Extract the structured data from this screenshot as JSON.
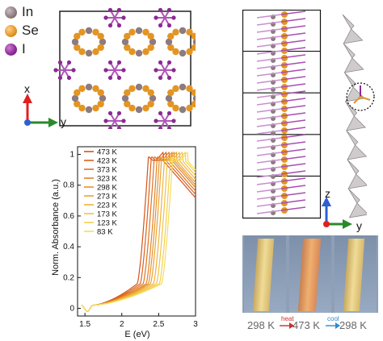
{
  "atom_legend": [
    {
      "label": "In",
      "color": "#8c7b7f"
    },
    {
      "label": "Se",
      "color": "#e39524"
    },
    {
      "label": "I",
      "color": "#8a2a93"
    }
  ],
  "axes_xy": {
    "x_label": "x",
    "y_label": "y",
    "x_color": "#e02020",
    "y_color": "#2a8a2a",
    "origin_color": "#2f5fd0"
  },
  "axes_zy": {
    "z_label": "z",
    "y_label": "y",
    "z_color": "#2f5fd0",
    "y_color": "#2a8a2a",
    "origin_color": "#e02020"
  },
  "chart_data": {
    "type": "line",
    "xlabel": "E (eV)",
    "ylabel": "Norm. Absorbance (a.u.)",
    "xlim": [
      1.4,
      3.0
    ],
    "ylim": [
      -0.05,
      1.05
    ],
    "xticks": [
      "1.5",
      "2",
      "2.5",
      "3"
    ],
    "yticks": [
      "0",
      "0.2",
      "0.4",
      "0.6",
      "0.8",
      "1"
    ],
    "legend_position": "upper-left",
    "series": [
      {
        "name": "473 K",
        "color": "#d4521a",
        "edge": 2.36
      },
      {
        "name": "423 K",
        "color": "#d9621d",
        "edge": 2.4
      },
      {
        "name": "373 K",
        "color": "#de7222",
        "edge": 2.44
      },
      {
        "name": "323 K",
        "color": "#e28226",
        "edge": 2.48
      },
      {
        "name": "298 K",
        "color": "#e6922b",
        "edge": 2.51
      },
      {
        "name": "273 K",
        "color": "#eaa232",
        "edge": 2.54
      },
      {
        "name": "223 K",
        "color": "#eeb23a",
        "edge": 2.58
      },
      {
        "name": "173 K",
        "color": "#f1c244",
        "edge": 2.62
      },
      {
        "name": "123 K",
        "color": "#f4d04e",
        "edge": 2.66
      },
      {
        "name": "83 K",
        "color": "#f6dc5a",
        "edge": 2.69
      }
    ]
  },
  "photo_strip": {
    "labels": [
      "298 K",
      "473 K",
      "298 K"
    ],
    "heat_label": "heat",
    "cool_label": "cool",
    "heat_color": "#d22a2a",
    "cool_color": "#2a8ad2"
  }
}
